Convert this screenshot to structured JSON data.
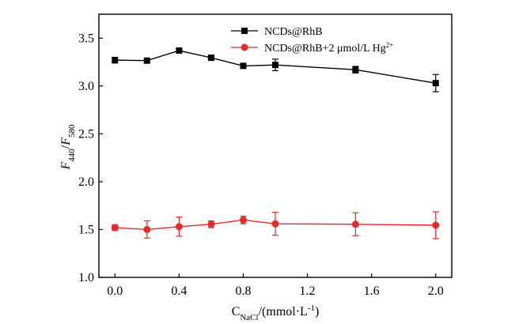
{
  "chart_data": {
    "type": "line",
    "x": [
      0.0,
      0.2,
      0.4,
      0.6,
      0.8,
      1.0,
      1.5,
      2.0
    ],
    "series": [
      {
        "name": "NCDs@RhB",
        "values": [
          3.27,
          3.265,
          3.37,
          3.295,
          3.21,
          3.22,
          3.17,
          3.03
        ],
        "errors": [
          0.03,
          0.01,
          0.02,
          0.015,
          0.02,
          0.06,
          0.035,
          0.09
        ],
        "color": "#000000",
        "marker": "square"
      },
      {
        "name": "NCDs@RhB+2 µmol/L Hg²⁺",
        "name_main": "NCDs@RhB+2 μmol/L  Hg",
        "name_sup": "2+",
        "values": [
          1.52,
          1.5,
          1.53,
          1.555,
          1.6,
          1.56,
          1.555,
          1.545
        ],
        "errors": [
          0.03,
          0.09,
          0.1,
          0.035,
          0.04,
          0.12,
          0.12,
          0.14
        ],
        "color": "#e8292a",
        "marker": "circle"
      }
    ],
    "xlabel": {
      "main": "C",
      "sub": "NaCl",
      "rest": "/(mmol·L",
      "sup": "-1",
      "end": ")"
    },
    "ylabel": {
      "f1": "F",
      "s1": "440",
      "slash": "/",
      "f2": "F",
      "s2": "580"
    },
    "xlim": [
      -0.1,
      2.1
    ],
    "ylim": [
      1.0,
      3.75
    ],
    "xticks": [
      0.0,
      0.4,
      0.8,
      1.2,
      1.6,
      2.0
    ],
    "xtick_labels": [
      "0.0",
      "0.4",
      "0.8",
      "1.2",
      "1.6",
      "2.0"
    ],
    "yticks": [
      1.0,
      1.5,
      2.0,
      2.5,
      3.0,
      3.5
    ],
    "ytick_labels": [
      "1.0",
      "1.5",
      "2.0",
      "2.5",
      "3.0",
      "3.5"
    ],
    "legend_position": "top-right",
    "grid": false
  }
}
